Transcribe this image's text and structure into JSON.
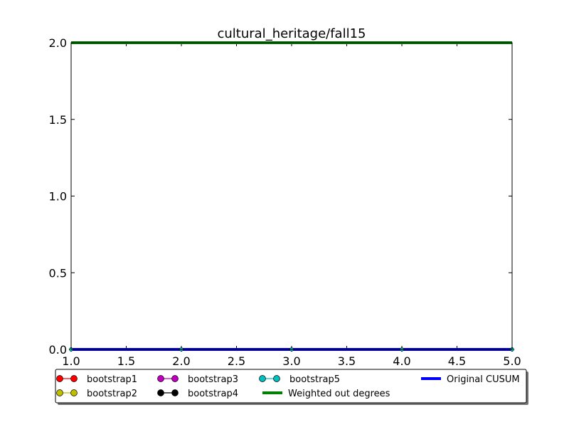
{
  "chart_data": {
    "type": "line",
    "title": "cultural_heritage/fall15",
    "xlabel": "",
    "ylabel": "",
    "xlim": [
      1.0,
      5.0
    ],
    "ylim": [
      0.0,
      2.0
    ],
    "x_ticks": [
      "1.0",
      "1.5",
      "2.0",
      "2.5",
      "3.0",
      "3.5",
      "4.0",
      "4.5",
      "5.0"
    ],
    "y_ticks": [
      "0.0",
      "0.5",
      "1.0",
      "1.5",
      "2.0"
    ],
    "grid": false,
    "legend_position": "bottom",
    "x": [
      1,
      2,
      3,
      4,
      5
    ],
    "series": [
      {
        "name": "bootstrap1",
        "color": "#ff0000",
        "marker": "circle",
        "values": [
          0,
          0,
          0,
          0,
          0
        ]
      },
      {
        "name": "bootstrap2",
        "color": "#bfbf00",
        "marker": "circle",
        "values": [
          0,
          0,
          0,
          0,
          0
        ]
      },
      {
        "name": "bootstrap3",
        "color": "#bf00bf",
        "marker": "circle",
        "values": [
          0,
          0,
          0,
          0,
          0
        ]
      },
      {
        "name": "bootstrap4",
        "color": "#000000",
        "marker": "circle",
        "values": [
          0,
          0,
          0,
          0,
          0
        ]
      },
      {
        "name": "bootstrap5",
        "color": "#00bfbf",
        "marker": "circle",
        "values": [
          0,
          0,
          0,
          0,
          0
        ]
      },
      {
        "name": "Weighted out degrees",
        "color": "#008000",
        "marker": "none",
        "values": [
          2,
          2,
          2,
          2,
          2
        ]
      },
      {
        "name": "Original CUSUM",
        "color": "#0000ff",
        "marker": "none",
        "values": [
          0,
          0,
          0,
          0,
          0
        ]
      }
    ]
  }
}
